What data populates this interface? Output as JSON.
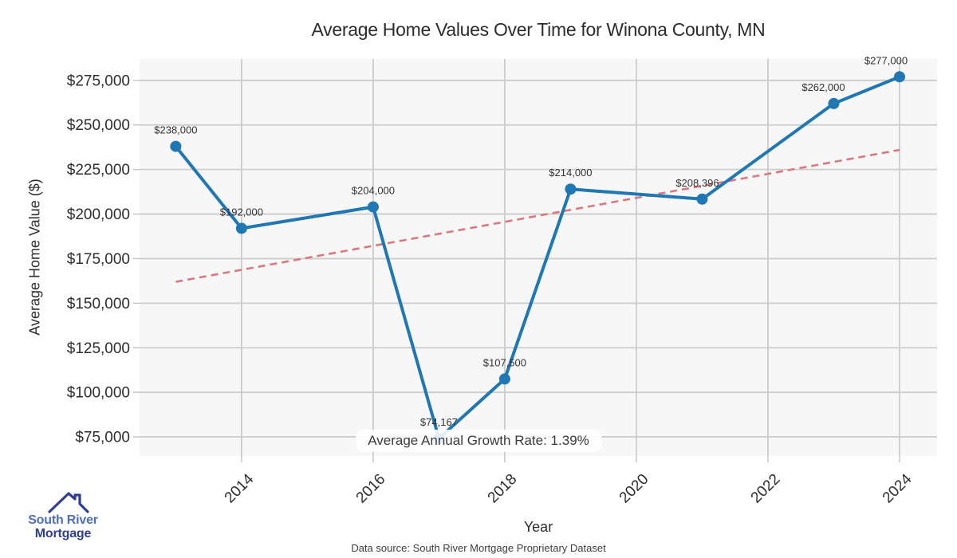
{
  "chart_data": {
    "type": "line",
    "title": "Average Home Values Over Time for Winona County, MN",
    "xlabel": "Year",
    "ylabel": "Average Home Value ($)",
    "x": [
      2013,
      2014,
      2016,
      2017,
      2018,
      2019,
      2021,
      2023,
      2024
    ],
    "values": [
      238000,
      192000,
      204000,
      74167,
      107500,
      214000,
      208396,
      262000,
      277000
    ],
    "point_labels": [
      "$238,000",
      "$192,000",
      "$204,000",
      "$74,167",
      "$107,500",
      "$214,000",
      "$208,396",
      "$262,000",
      "$277,000"
    ],
    "xticks": [
      2014,
      2016,
      2018,
      2020,
      2022,
      2024
    ],
    "yticks": [
      75000,
      100000,
      125000,
      150000,
      175000,
      200000,
      225000,
      250000,
      275000
    ],
    "ytick_labels": [
      "$75,000",
      "$100,000",
      "$125,000",
      "$150,000",
      "$175,000",
      "$200,000",
      "$225,000",
      "$250,000",
      "$275,000"
    ],
    "xlim": [
      2012.45,
      2024.57
    ],
    "ylim": [
      64300,
      287000
    ],
    "grid": true,
    "legend": "none",
    "trendline": {
      "x0": 2013,
      "v0": 162000,
      "x1": 2024,
      "v1": 236000,
      "style": "dashed"
    },
    "annotation": "Average Annual Growth Rate: 1.39%"
  },
  "footer": {
    "text": "Data source: South River Mortgage Proprietary Dataset"
  },
  "logo": {
    "line1": "South River",
    "line2": "Mortgage"
  },
  "colors": {
    "series_blue": "#1f77b4",
    "trend_salmon": "#d9797f",
    "plot_bg": "#f7f7f7",
    "gridline": "#cccccc",
    "tick_mark": "#c7c7c7",
    "text_dark": "#2d2d2d",
    "point_label": "#333333",
    "logo_navy": "#303f90",
    "logo_blue": "#4d6fb8"
  }
}
